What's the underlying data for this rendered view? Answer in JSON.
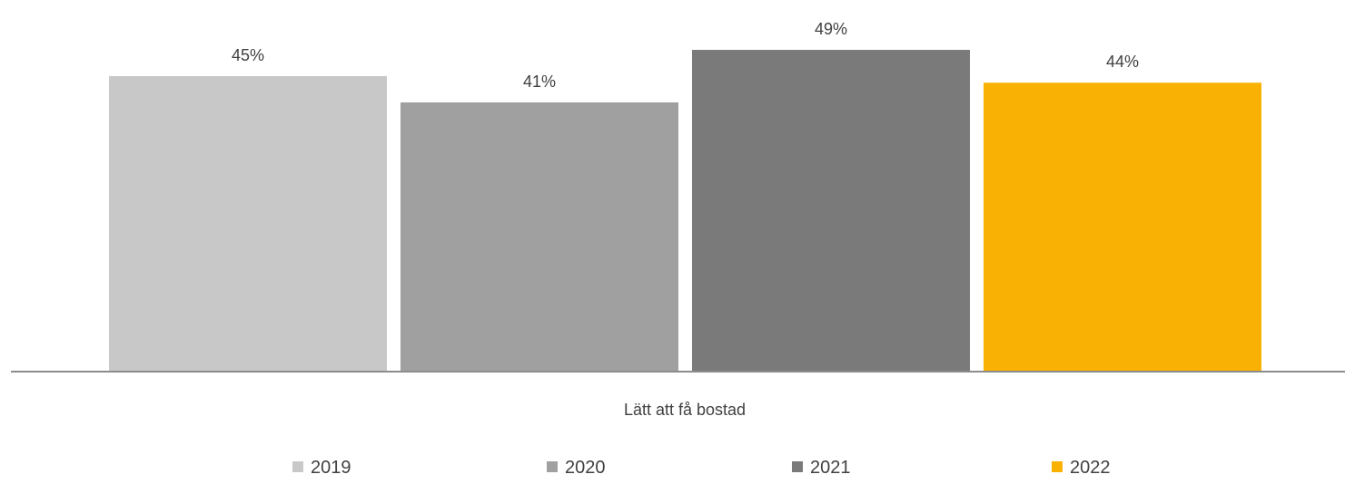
{
  "chart_data": {
    "type": "bar",
    "title": "",
    "xlabel": "",
    "ylabel": "",
    "categories": [
      "Lätt att få bostad"
    ],
    "ylim": [
      0,
      55
    ],
    "grid": false,
    "legend_position": "bottom",
    "series": [
      {
        "name": "2019",
        "values": [
          45
        ],
        "label": "45%",
        "color": "#c8c8c8"
      },
      {
        "name": "2020",
        "values": [
          41
        ],
        "label": "41%",
        "color": "#a0a0a0"
      },
      {
        "name": "2021",
        "values": [
          49
        ],
        "label": "49%",
        "color": "#7a7a7a"
      },
      {
        "name": "2022",
        "values": [
          44
        ],
        "label": "44%",
        "color": "#f9b104"
      }
    ]
  }
}
